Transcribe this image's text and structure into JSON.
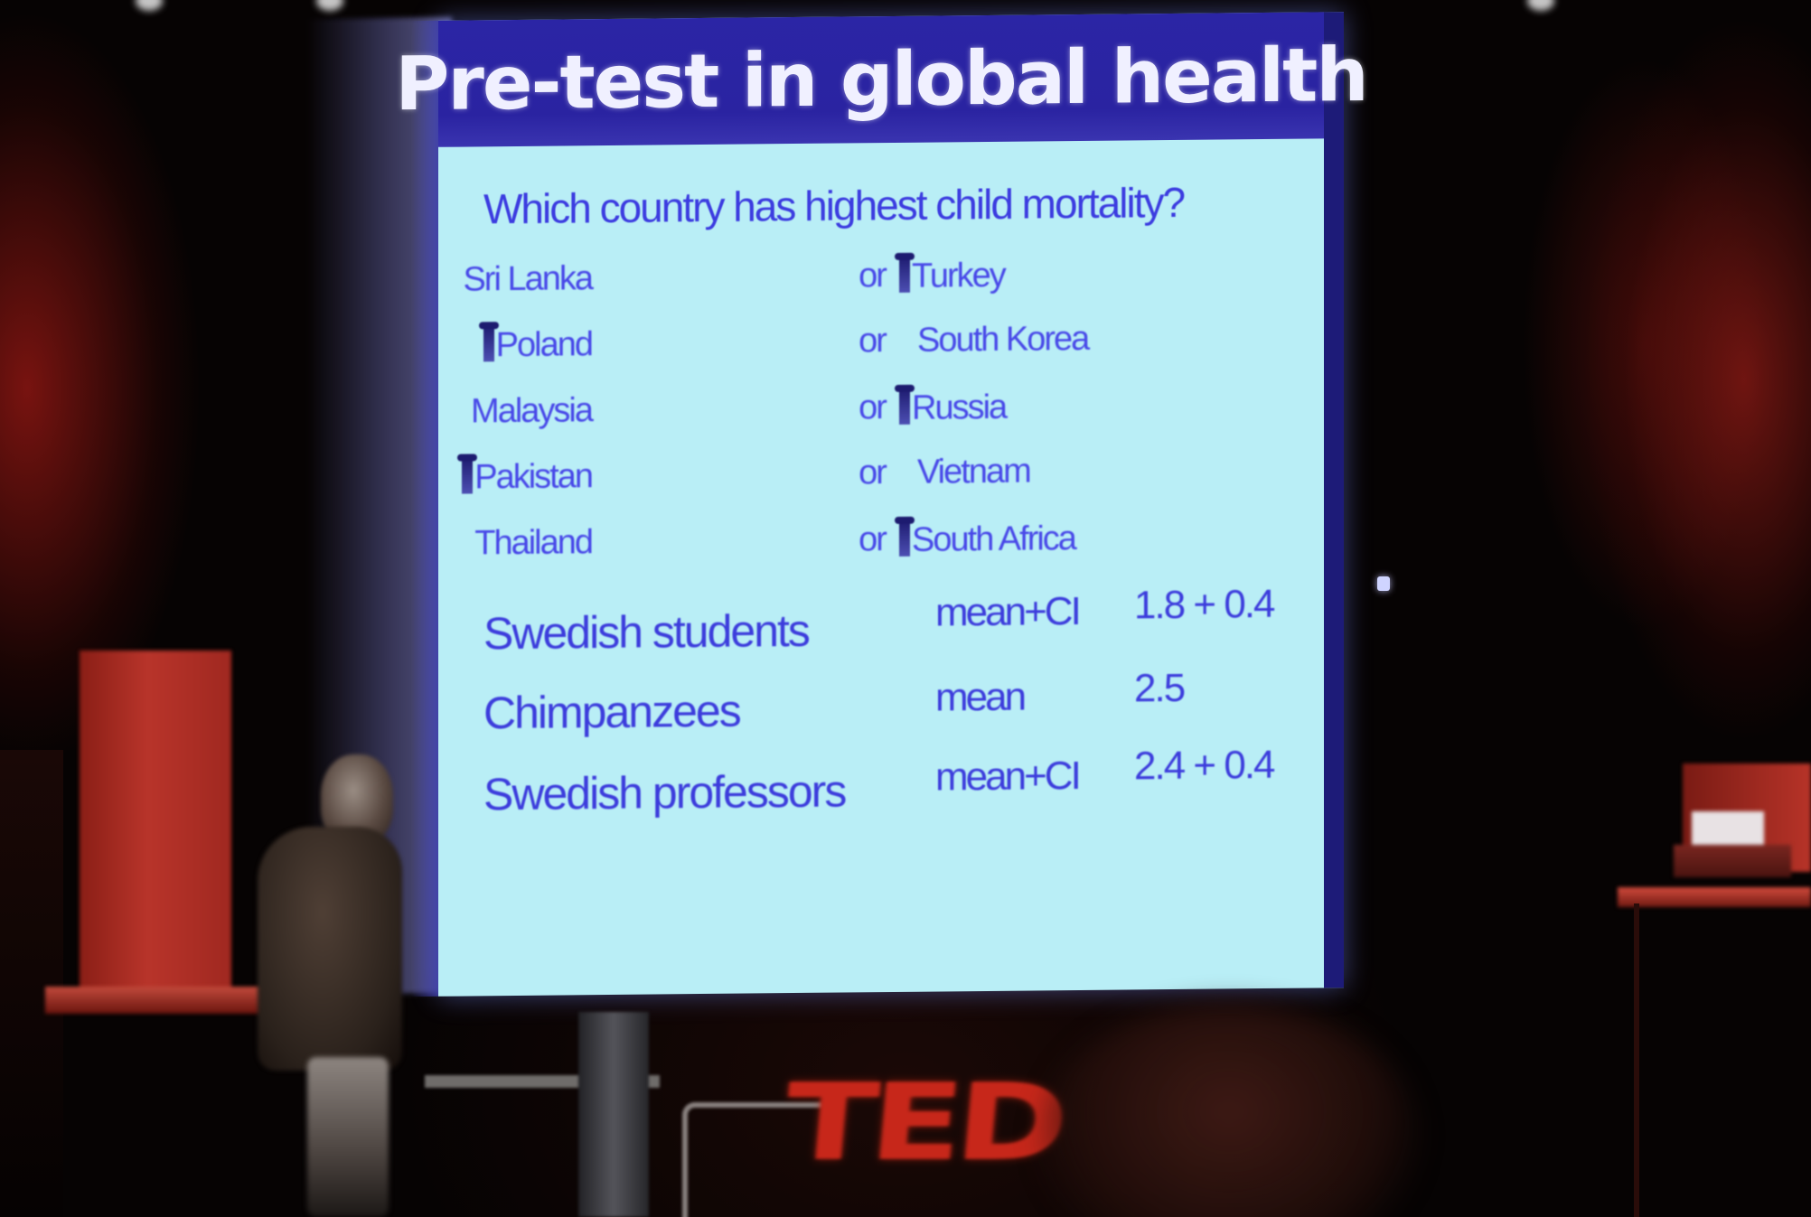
{
  "slide": {
    "title": "Pre-test in global health",
    "question": "Which country has highest child mortality?",
    "pairs": [
      {
        "left": "Sri Lanka",
        "or": "or",
        "right": "Turkey",
        "marked": "right"
      },
      {
        "left": "Poland",
        "or": "or",
        "right": "South Korea",
        "marked": "left"
      },
      {
        "left": "Malaysia",
        "or": "or",
        "right": "Russia",
        "marked": "right"
      },
      {
        "left": "Pakistan",
        "or": "or",
        "right": "Vietnam",
        "marked": "left"
      },
      {
        "left": "Thailand",
        "or": "or",
        "right": "South Africa",
        "marked": "right"
      }
    ],
    "results": [
      {
        "group": "Swedish students",
        "measure": "mean+CI",
        "value": "1.8 + 0.4"
      },
      {
        "group": "Chimpanzees",
        "measure": "mean",
        "value": "2.5"
      },
      {
        "group": "Swedish professors",
        "measure": "mean+CI",
        "value": "2.4 + 0.4"
      }
    ]
  },
  "stage": {
    "logo_text": "TED"
  },
  "colors": {
    "title_bar": "#2a23a1",
    "slide_bg": "#b9eef6",
    "slide_text": "#3c3ce0",
    "logo": "#c7271a"
  }
}
